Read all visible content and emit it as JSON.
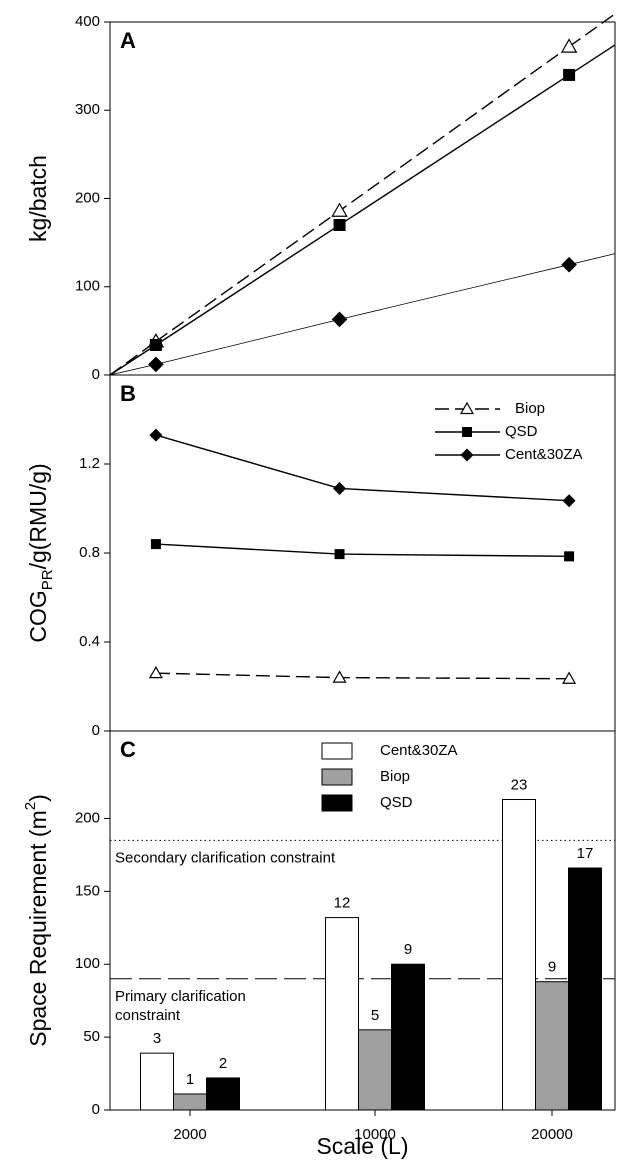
{
  "chart_data": [
    {
      "type": "line",
      "panel_label": "A",
      "ylabel": "kg/batch",
      "x": [
        2000,
        10000,
        20000
      ],
      "xlim": [
        0,
        22000
      ],
      "ylim": [
        0,
        400
      ],
      "yticks": [
        0,
        100,
        200,
        300,
        400
      ],
      "through_origin": true,
      "series": [
        {
          "name": "Biop",
          "color": "#000000",
          "marker": "triangle-open",
          "dash": "dashed",
          "values": [
            38,
            186,
            372
          ]
        },
        {
          "name": "QSD",
          "color": "#000000",
          "marker": "square",
          "dash": "solid",
          "values": [
            34,
            170,
            340
          ]
        },
        {
          "name": "Cent&30ZA",
          "color": "#000000",
          "marker": "diamond",
          "dash": "thin",
          "values": [
            12,
            63,
            125
          ]
        }
      ]
    },
    {
      "type": "line",
      "panel_label": "B",
      "ylabel": {
        "main": "COG",
        "sub": "PR",
        "rest": "/g(RMU/g)"
      },
      "x": [
        2000,
        10000,
        20000
      ],
      "xlim": [
        0,
        22000
      ],
      "ylim": [
        0,
        1.6
      ],
      "yticks": [
        0,
        0.4,
        0.8,
        1.2
      ],
      "legend": "upper right",
      "series": [
        {
          "name": "Biop",
          "color": "#000000",
          "marker": "triangle-open",
          "dash": "dashed",
          "values": [
            0.26,
            0.24,
            0.235
          ]
        },
        {
          "name": "QSD",
          "color": "#000000",
          "marker": "square",
          "dash": "solid",
          "values": [
            0.84,
            0.795,
            0.785
          ]
        },
        {
          "name": "Cent&30ZA",
          "color": "#000000",
          "marker": "diamond",
          "dash": "solid",
          "values": [
            1.33,
            1.09,
            1.035
          ]
        }
      ]
    },
    {
      "type": "bar",
      "panel_label": "C",
      "ylabel": {
        "main": "Space Requirement (m",
        "sup": "2",
        "rest": ")"
      },
      "xlabel": "Scale (L)",
      "categories": [
        "2000",
        "10000",
        "20000"
      ],
      "ylim": [
        0,
        260
      ],
      "yticks": [
        0,
        50,
        100,
        150,
        200
      ],
      "legend": "upper center",
      "series": [
        {
          "name": "Cent&30ZA",
          "color": "#ffffff",
          "values": [
            39,
            132,
            213
          ],
          "counts": [
            3,
            12,
            23
          ]
        },
        {
          "name": "Biop",
          "color": "#a0a0a0",
          "values": [
            11,
            55,
            88
          ],
          "counts": [
            1,
            5,
            9
          ]
        },
        {
          "name": "QSD",
          "color": "#000000",
          "values": [
            22,
            100,
            166
          ],
          "counts": [
            2,
            9,
            17
          ]
        }
      ],
      "reference_lines": [
        {
          "value": 185,
          "style": "dotted",
          "label": [
            "Secondary clarification constraint"
          ]
        },
        {
          "value": 90,
          "style": "dashed",
          "label": [
            "Primary clarification",
            "constraint"
          ]
        }
      ]
    }
  ]
}
